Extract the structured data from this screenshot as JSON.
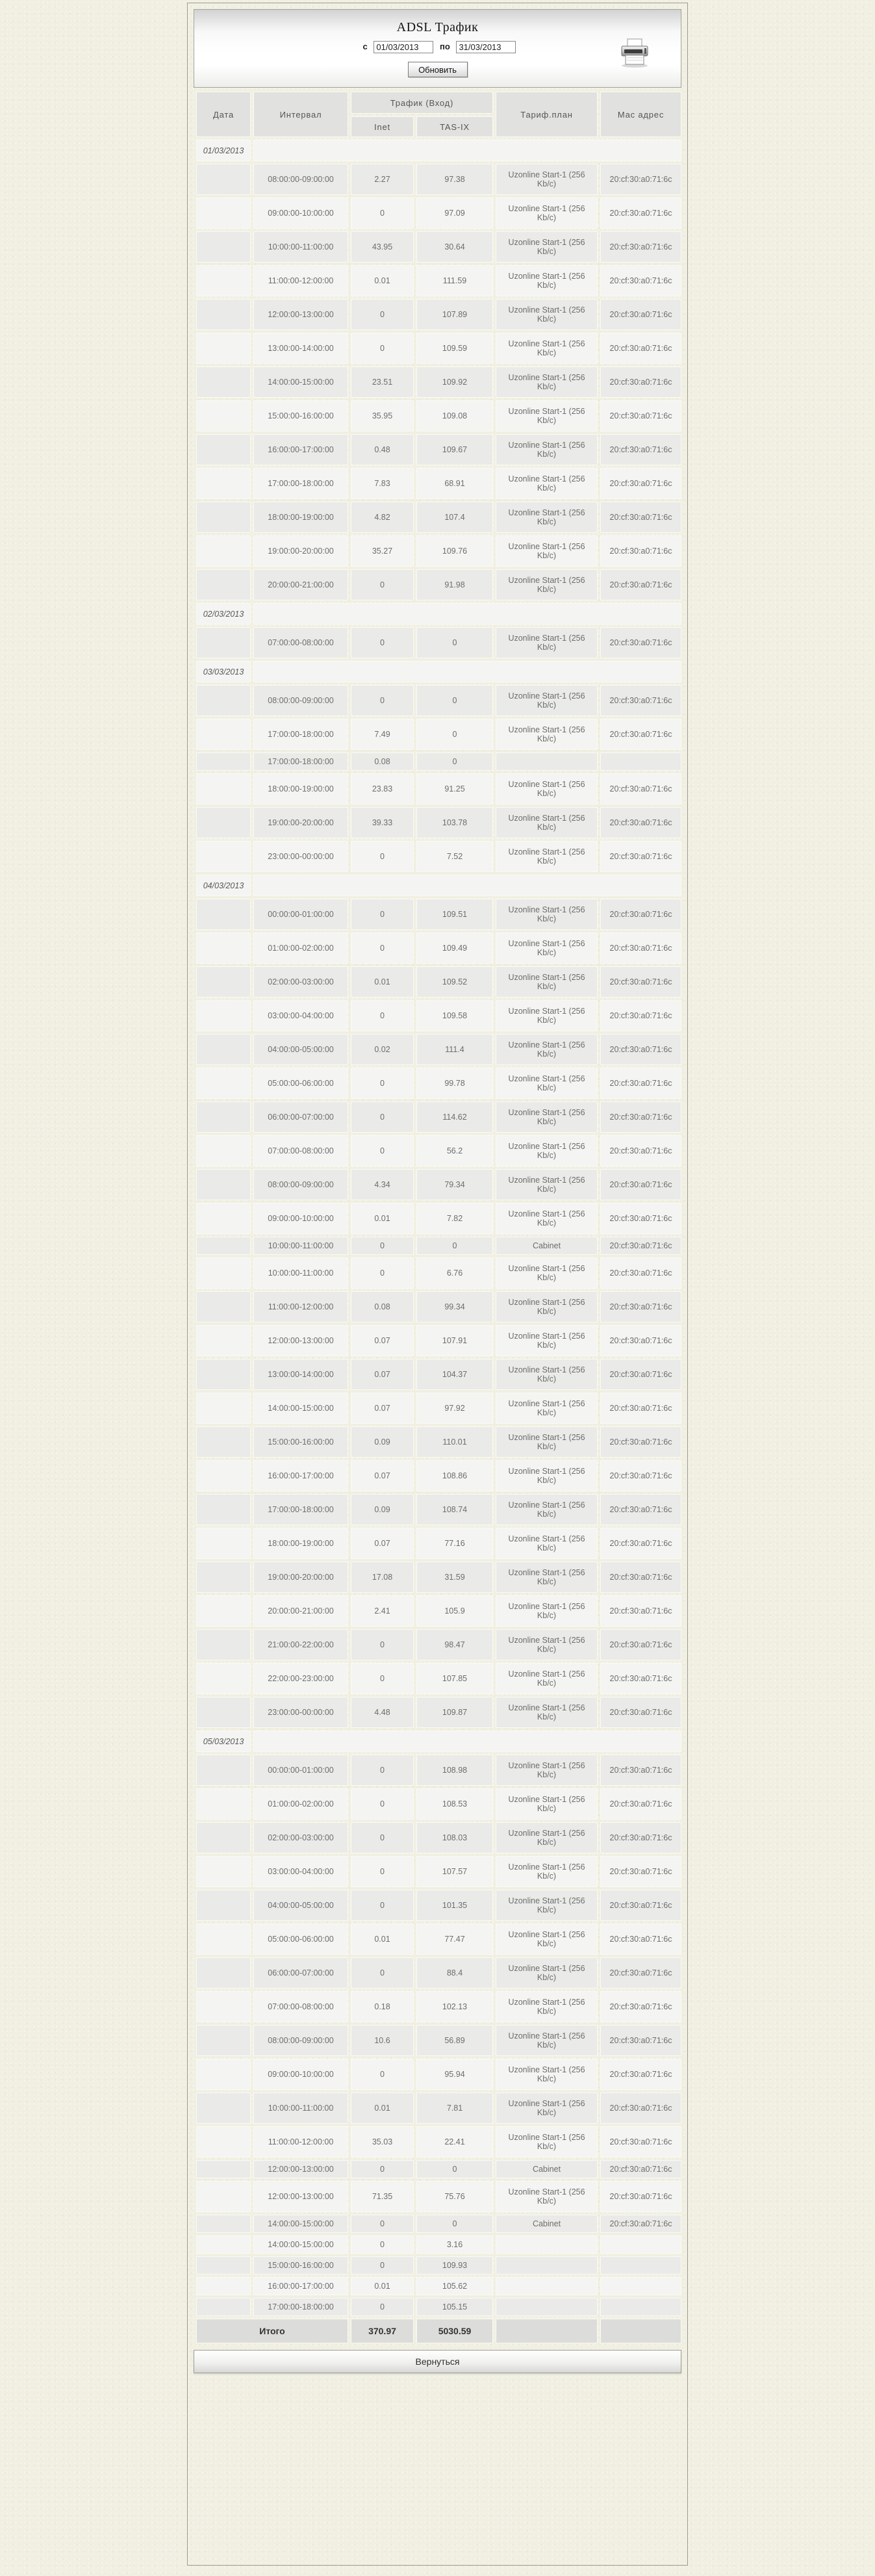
{
  "header": {
    "title": "ADSL Трафик",
    "from_label": "с",
    "from_value": "01/03/2013",
    "to_label": "по",
    "to_value": "31/03/2013",
    "refresh_label": "Обновить",
    "printer_icon": "printer-icon"
  },
  "table": {
    "columns": {
      "date": "Дата",
      "interval": "Интервал",
      "traffic_group": "Трафик (Вход)",
      "inet": "Inet",
      "tasix": "TAS-IX",
      "tariff": "Тариф.план",
      "mac": "Мас адрес"
    },
    "sections": [
      {
        "date": "01/03/2013",
        "rows": [
          {
            "interval": "08:00:00-09:00:00",
            "inet": "2.27",
            "tasix": "97.38",
            "tariff": "Uzonline Start-1 (256 Kb/c)",
            "mac": "20:cf:30:a0:71:6c"
          },
          {
            "interval": "09:00:00-10:00:00",
            "inet": "0",
            "tasix": "97.09",
            "tariff": "Uzonline Start-1 (256 Kb/c)",
            "mac": "20:cf:30:a0:71:6c"
          },
          {
            "interval": "10:00:00-11:00:00",
            "inet": "43.95",
            "tasix": "30.64",
            "tariff": "Uzonline Start-1 (256 Kb/c)",
            "mac": "20:cf:30:a0:71:6c"
          },
          {
            "interval": "11:00:00-12:00:00",
            "inet": "0.01",
            "tasix": "111.59",
            "tariff": "Uzonline Start-1 (256 Kb/c)",
            "mac": "20:cf:30:a0:71:6c"
          },
          {
            "interval": "12:00:00-13:00:00",
            "inet": "0",
            "tasix": "107.89",
            "tariff": "Uzonline Start-1 (256 Kb/c)",
            "mac": "20:cf:30:a0:71:6c"
          },
          {
            "interval": "13:00:00-14:00:00",
            "inet": "0",
            "tasix": "109.59",
            "tariff": "Uzonline Start-1 (256 Kb/c)",
            "mac": "20:cf:30:a0:71:6c"
          },
          {
            "interval": "14:00:00-15:00:00",
            "inet": "23.51",
            "tasix": "109.92",
            "tariff": "Uzonline Start-1 (256 Kb/c)",
            "mac": "20:cf:30:a0:71:6c"
          },
          {
            "interval": "15:00:00-16:00:00",
            "inet": "35.95",
            "tasix": "109.08",
            "tariff": "Uzonline Start-1 (256 Kb/c)",
            "mac": "20:cf:30:a0:71:6c"
          },
          {
            "interval": "16:00:00-17:00:00",
            "inet": "0.48",
            "tasix": "109.67",
            "tariff": "Uzonline Start-1 (256 Kb/c)",
            "mac": "20:cf:30:a0:71:6c"
          },
          {
            "interval": "17:00:00-18:00:00",
            "inet": "7.83",
            "tasix": "68.91",
            "tariff": "Uzonline Start-1 (256 Kb/c)",
            "mac": "20:cf:30:a0:71:6c"
          },
          {
            "interval": "18:00:00-19:00:00",
            "inet": "4.82",
            "tasix": "107.4",
            "tariff": "Uzonline Start-1 (256 Kb/c)",
            "mac": "20:cf:30:a0:71:6c"
          },
          {
            "interval": "19:00:00-20:00:00",
            "inet": "35.27",
            "tasix": "109.76",
            "tariff": "Uzonline Start-1 (256 Kb/c)",
            "mac": "20:cf:30:a0:71:6c"
          },
          {
            "interval": "20:00:00-21:00:00",
            "inet": "0",
            "tasix": "91.98",
            "tariff": "Uzonline Start-1 (256 Kb/c)",
            "mac": "20:cf:30:a0:71:6c"
          }
        ]
      },
      {
        "date": "02/03/2013",
        "rows": [
          {
            "interval": "07:00:00-08:00:00",
            "inet": "0",
            "tasix": "0",
            "tariff": "Uzonline Start-1 (256 Kb/c)",
            "mac": "20:cf:30:a0:71:6c"
          }
        ]
      },
      {
        "date": "03/03/2013",
        "rows": [
          {
            "interval": "08:00:00-09:00:00",
            "inet": "0",
            "tasix": "0",
            "tariff": "Uzonline Start-1 (256 Kb/c)",
            "mac": "20:cf:30:a0:71:6c"
          },
          {
            "interval": "17:00:00-18:00:00",
            "inet": "7.49",
            "tasix": "0",
            "tariff": "Uzonline Start-1 (256 Kb/c)",
            "mac": "20:cf:30:a0:71:6c"
          },
          {
            "interval": "17:00:00-18:00:00",
            "inet": "0.08",
            "tasix": "0",
            "tariff": "",
            "mac": ""
          },
          {
            "interval": "18:00:00-19:00:00",
            "inet": "23.83",
            "tasix": "91.25",
            "tariff": "Uzonline Start-1 (256 Kb/c)",
            "mac": "20:cf:30:a0:71:6c"
          },
          {
            "interval": "19:00:00-20:00:00",
            "inet": "39.33",
            "tasix": "103.78",
            "tariff": "Uzonline Start-1 (256 Kb/c)",
            "mac": "20:cf:30:a0:71:6c"
          },
          {
            "interval": "23:00:00-00:00:00",
            "inet": "0",
            "tasix": "7.52",
            "tariff": "Uzonline Start-1 (256 Kb/c)",
            "mac": "20:cf:30:a0:71:6c"
          }
        ]
      },
      {
        "date": "04/03/2013",
        "rows": [
          {
            "interval": "00:00:00-01:00:00",
            "inet": "0",
            "tasix": "109.51",
            "tariff": "Uzonline Start-1 (256 Kb/c)",
            "mac": "20:cf:30:a0:71:6c"
          },
          {
            "interval": "01:00:00-02:00:00",
            "inet": "0",
            "tasix": "109.49",
            "tariff": "Uzonline Start-1 (256 Kb/c)",
            "mac": "20:cf:30:a0:71:6c"
          },
          {
            "interval": "02:00:00-03:00:00",
            "inet": "0.01",
            "tasix": "109.52",
            "tariff": "Uzonline Start-1 (256 Kb/c)",
            "mac": "20:cf:30:a0:71:6c"
          },
          {
            "interval": "03:00:00-04:00:00",
            "inet": "0",
            "tasix": "109.58",
            "tariff": "Uzonline Start-1 (256 Kb/c)",
            "mac": "20:cf:30:a0:71:6c"
          },
          {
            "interval": "04:00:00-05:00:00",
            "inet": "0.02",
            "tasix": "111.4",
            "tariff": "Uzonline Start-1 (256 Kb/c)",
            "mac": "20:cf:30:a0:71:6c"
          },
          {
            "interval": "05:00:00-06:00:00",
            "inet": "0",
            "tasix": "99.78",
            "tariff": "Uzonline Start-1 (256 Kb/c)",
            "mac": "20:cf:30:a0:71:6c"
          },
          {
            "interval": "06:00:00-07:00:00",
            "inet": "0",
            "tasix": "114.62",
            "tariff": "Uzonline Start-1 (256 Kb/c)",
            "mac": "20:cf:30:a0:71:6c"
          },
          {
            "interval": "07:00:00-08:00:00",
            "inet": "0",
            "tasix": "56.2",
            "tariff": "Uzonline Start-1 (256 Kb/c)",
            "mac": "20:cf:30:a0:71:6c"
          },
          {
            "interval": "08:00:00-09:00:00",
            "inet": "4.34",
            "tasix": "79.34",
            "tariff": "Uzonline Start-1 (256 Kb/c)",
            "mac": "20:cf:30:a0:71:6c"
          },
          {
            "interval": "09:00:00-10:00:00",
            "inet": "0.01",
            "tasix": "7.82",
            "tariff": "Uzonline Start-1 (256 Kb/c)",
            "mac": "20:cf:30:a0:71:6c"
          },
          {
            "interval": "10:00:00-11:00:00",
            "inet": "0",
            "tasix": "0",
            "tariff": "Cabinet",
            "mac": "20:cf:30:a0:71:6c"
          },
          {
            "interval": "10:00:00-11:00:00",
            "inet": "0",
            "tasix": "6.76",
            "tariff": "Uzonline Start-1 (256 Kb/c)",
            "mac": "20:cf:30:a0:71:6c"
          },
          {
            "interval": "11:00:00-12:00:00",
            "inet": "0.08",
            "tasix": "99.34",
            "tariff": "Uzonline Start-1 (256 Kb/c)",
            "mac": "20:cf:30:a0:71:6c"
          },
          {
            "interval": "12:00:00-13:00:00",
            "inet": "0.07",
            "tasix": "107.91",
            "tariff": "Uzonline Start-1 (256 Kb/c)",
            "mac": "20:cf:30:a0:71:6c"
          },
          {
            "interval": "13:00:00-14:00:00",
            "inet": "0.07",
            "tasix": "104.37",
            "tariff": "Uzonline Start-1 (256 Kb/c)",
            "mac": "20:cf:30:a0:71:6c"
          },
          {
            "interval": "14:00:00-15:00:00",
            "inet": "0.07",
            "tasix": "97.92",
            "tariff": "Uzonline Start-1 (256 Kb/c)",
            "mac": "20:cf:30:a0:71:6c"
          },
          {
            "interval": "15:00:00-16:00:00",
            "inet": "0.09",
            "tasix": "110.01",
            "tariff": "Uzonline Start-1 (256 Kb/c)",
            "mac": "20:cf:30:a0:71:6c"
          },
          {
            "interval": "16:00:00-17:00:00",
            "inet": "0.07",
            "tasix": "108.86",
            "tariff": "Uzonline Start-1 (256 Kb/c)",
            "mac": "20:cf:30:a0:71:6c"
          },
          {
            "interval": "17:00:00-18:00:00",
            "inet": "0.09",
            "tasix": "108.74",
            "tariff": "Uzonline Start-1 (256 Kb/c)",
            "mac": "20:cf:30:a0:71:6c"
          },
          {
            "interval": "18:00:00-19:00:00",
            "inet": "0.07",
            "tasix": "77.16",
            "tariff": "Uzonline Start-1 (256 Kb/c)",
            "mac": "20:cf:30:a0:71:6c"
          },
          {
            "interval": "19:00:00-20:00:00",
            "inet": "17.08",
            "tasix": "31.59",
            "tariff": "Uzonline Start-1 (256 Kb/c)",
            "mac": "20:cf:30:a0:71:6c"
          },
          {
            "interval": "20:00:00-21:00:00",
            "inet": "2.41",
            "tasix": "105.9",
            "tariff": "Uzonline Start-1 (256 Kb/c)",
            "mac": "20:cf:30:a0:71:6c"
          },
          {
            "interval": "21:00:00-22:00:00",
            "inet": "0",
            "tasix": "98.47",
            "tariff": "Uzonline Start-1 (256 Kb/c)",
            "mac": "20:cf:30:a0:71:6c"
          },
          {
            "interval": "22:00:00-23:00:00",
            "inet": "0",
            "tasix": "107.85",
            "tariff": "Uzonline Start-1 (256 Kb/c)",
            "mac": "20:cf:30:a0:71:6c"
          },
          {
            "interval": "23:00:00-00:00:00",
            "inet": "4.48",
            "tasix": "109.87",
            "tariff": "Uzonline Start-1 (256 Kb/c)",
            "mac": "20:cf:30:a0:71:6c"
          }
        ]
      },
      {
        "date": "05/03/2013",
        "rows": [
          {
            "interval": "00:00:00-01:00:00",
            "inet": "0",
            "tasix": "108.98",
            "tariff": "Uzonline Start-1 (256 Kb/c)",
            "mac": "20:cf:30:a0:71:6c"
          },
          {
            "interval": "01:00:00-02:00:00",
            "inet": "0",
            "tasix": "108.53",
            "tariff": "Uzonline Start-1 (256 Kb/c)",
            "mac": "20:cf:30:a0:71:6c"
          },
          {
            "interval": "02:00:00-03:00:00",
            "inet": "0",
            "tasix": "108.03",
            "tariff": "Uzonline Start-1 (256 Kb/c)",
            "mac": "20:cf:30:a0:71:6c"
          },
          {
            "interval": "03:00:00-04:00:00",
            "inet": "0",
            "tasix": "107.57",
            "tariff": "Uzonline Start-1 (256 Kb/c)",
            "mac": "20:cf:30:a0:71:6c"
          },
          {
            "interval": "04:00:00-05:00:00",
            "inet": "0",
            "tasix": "101.35",
            "tariff": "Uzonline Start-1 (256 Kb/c)",
            "mac": "20:cf:30:a0:71:6c"
          },
          {
            "interval": "05:00:00-06:00:00",
            "inet": "0.01",
            "tasix": "77.47",
            "tariff": "Uzonline Start-1 (256 Kb/c)",
            "mac": "20:cf:30:a0:71:6c"
          },
          {
            "interval": "06:00:00-07:00:00",
            "inet": "0",
            "tasix": "88.4",
            "tariff": "Uzonline Start-1 (256 Kb/c)",
            "mac": "20:cf:30:a0:71:6c"
          },
          {
            "interval": "07:00:00-08:00:00",
            "inet": "0.18",
            "tasix": "102.13",
            "tariff": "Uzonline Start-1 (256 Kb/c)",
            "mac": "20:cf:30:a0:71:6c"
          },
          {
            "interval": "08:00:00-09:00:00",
            "inet": "10.6",
            "tasix": "56.89",
            "tariff": "Uzonline Start-1 (256 Kb/c)",
            "mac": "20:cf:30:a0:71:6c"
          },
          {
            "interval": "09:00:00-10:00:00",
            "inet": "0",
            "tasix": "95.94",
            "tariff": "Uzonline Start-1 (256 Kb/c)",
            "mac": "20:cf:30:a0:71:6c"
          },
          {
            "interval": "10:00:00-11:00:00",
            "inet": "0.01",
            "tasix": "7.81",
            "tariff": "Uzonline Start-1 (256 Kb/c)",
            "mac": "20:cf:30:a0:71:6c"
          },
          {
            "interval": "11:00:00-12:00:00",
            "inet": "35.03",
            "tasix": "22.41",
            "tariff": "Uzonline Start-1 (256 Kb/c)",
            "mac": "20:cf:30:a0:71:6c"
          },
          {
            "interval": "12:00:00-13:00:00",
            "inet": "0",
            "tasix": "0",
            "tariff": "Cabinet",
            "mac": "20:cf:30:a0:71:6c"
          },
          {
            "interval": "12:00:00-13:00:00",
            "inet": "71.35",
            "tasix": "75.76",
            "tariff": "Uzonline Start-1 (256 Kb/c)",
            "mac": "20:cf:30:a0:71:6c"
          },
          {
            "interval": "14:00:00-15:00:00",
            "inet": "0",
            "tasix": "0",
            "tariff": "Cabinet",
            "mac": "20:cf:30:a0:71:6c"
          },
          {
            "interval": "14:00:00-15:00:00",
            "inet": "0",
            "tasix": "3.16",
            "tariff": "",
            "mac": ""
          },
          {
            "interval": "15:00:00-16:00:00",
            "inet": "0",
            "tasix": "109.93",
            "tariff": "",
            "mac": ""
          },
          {
            "interval": "16:00:00-17:00:00",
            "inet": "0.01",
            "tasix": "105.62",
            "tariff": "",
            "mac": ""
          },
          {
            "interval": "17:00:00-18:00:00",
            "inet": "0",
            "tasix": "105.15",
            "tariff": "",
            "mac": ""
          }
        ]
      }
    ],
    "total": {
      "label": "Итого",
      "inet": "370.97",
      "tasix": "5030.59"
    }
  },
  "footer": {
    "back_label": "Вернуться"
  }
}
